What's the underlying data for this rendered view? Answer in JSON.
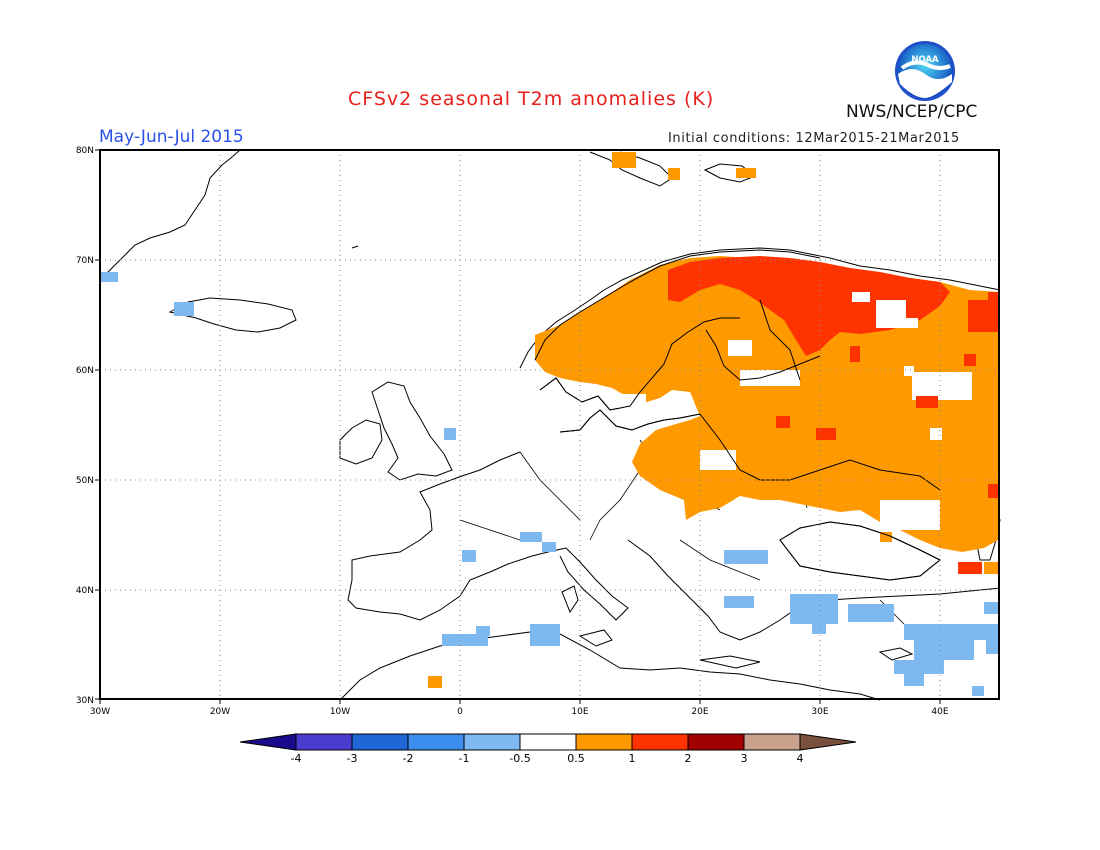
{
  "header": {
    "title": "CFSv2 seasonal T2m anomalies (K)",
    "period": "May-Jun-Jul 2015",
    "initial_conditions": "Initial conditions: 12Mar2015-21Mar2015",
    "organization": "NWS/NCEP/CPC",
    "logo_text": "NOAA"
  },
  "map": {
    "lon_range": [
      -30,
      45
    ],
    "lat_range": [
      30,
      80
    ],
    "lon_tick_labels": [
      "30W",
      "20W",
      "10W",
      "0",
      "10E",
      "20E",
      "30E",
      "40E"
    ],
    "lat_tick_labels": [
      "30N",
      "40N",
      "50N",
      "60N",
      "70N",
      "80N"
    ],
    "grid": "dotted",
    "anomaly_regions": [
      {
        "name": "Scandinavia warm anomaly",
        "category": "0.5 to 1",
        "color": "#ff9900"
      },
      {
        "name": "Eastern Europe / Russia warm anomaly",
        "category": "0.5 to 1",
        "color": "#ff9900"
      },
      {
        "name": "Northern Finland / Kola warm anomaly",
        "category": "1 to 2",
        "color": "#ff3300"
      },
      {
        "name": "Mediterranean / Middle East cool patches",
        "category": "-1 to -0.5",
        "color": "#7db8f0"
      }
    ]
  },
  "colorbar": {
    "labels": [
      "-4",
      "-3",
      "-2",
      "-1",
      "-0.5",
      "0.5",
      "1",
      "2",
      "3",
      "4"
    ],
    "colors": [
      "#1a0a8c",
      "#4a3ccf",
      "#1f66d6",
      "#3c8ef0",
      "#7db8f0",
      "#ffffff",
      "#ff9900",
      "#ff3300",
      "#a00000",
      "#c9a08a",
      "#7a4f3c"
    ]
  }
}
